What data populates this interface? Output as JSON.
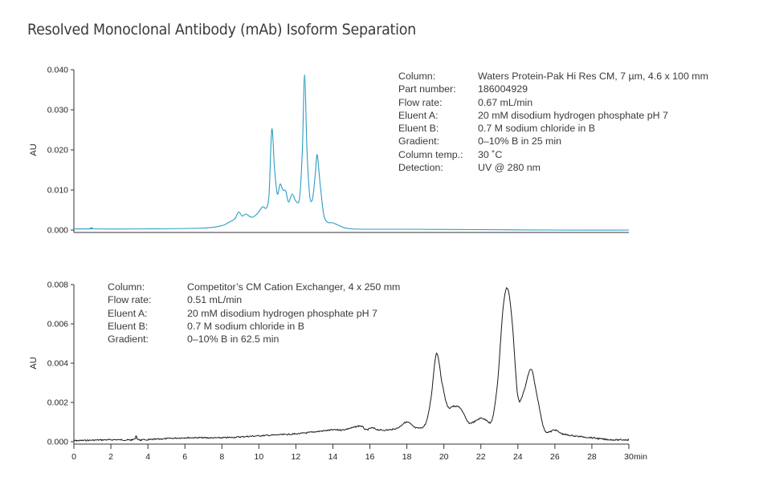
{
  "title": "Resolved Monoclonal Antibody (mAb) Isoform Separation",
  "chart_data": [
    {
      "type": "line",
      "title": "Waters Protein-Pak Hi Res CM",
      "xlabel": "min",
      "ylabel": "AU",
      "xlim": [
        0,
        30
      ],
      "ylim": [
        0,
        0.04
      ],
      "yticks": [
        "0.000",
        "0.010",
        "0.020",
        "0.030",
        "0.040"
      ],
      "grid": false,
      "line_color": "#2b9cc4",
      "series": [
        {
          "name": "Waters Protein-Pak Hi Res CM",
          "x": [
            0.0,
            0.9,
            1.0,
            1.1,
            4.0,
            7.0,
            8.0,
            8.4,
            8.7,
            8.9,
            9.1,
            9.3,
            9.6,
            9.9,
            10.2,
            10.4,
            10.55,
            10.7,
            10.85,
            11.0,
            11.15,
            11.3,
            11.45,
            11.6,
            11.8,
            12.0,
            12.2,
            12.35,
            12.47,
            12.6,
            12.75,
            12.9,
            13.05,
            13.15,
            13.3,
            13.5,
            13.7,
            14.0,
            14.3,
            14.6,
            15.0,
            16.0,
            18.0,
            22.0,
            26.0,
            30.0
          ],
          "y": [
            0.0003,
            0.0003,
            0.0006,
            0.0003,
            0.0003,
            0.0005,
            0.0011,
            0.002,
            0.0028,
            0.0045,
            0.0035,
            0.004,
            0.0032,
            0.004,
            0.0058,
            0.0055,
            0.009,
            0.0252,
            0.015,
            0.009,
            0.0115,
            0.01,
            0.0098,
            0.007,
            0.009,
            0.0072,
            0.008,
            0.02,
            0.0388,
            0.02,
            0.0085,
            0.0078,
            0.014,
            0.0188,
            0.012,
            0.004,
            0.002,
            0.0018,
            0.0012,
            0.0006,
            0.0003,
            0.0002,
            0.0002,
            0.0001,
            0.0,
            0.0
          ]
        }
      ],
      "annotation": [
        {
          "key": "Column:",
          "value": "Waters Protein-Pak Hi Res CM, 7 µm, 4.6 x 100 mm"
        },
        {
          "key": "Part number:",
          "value": "186004929"
        },
        {
          "key": "Flow rate:",
          "value": "0.67 mL/min"
        },
        {
          "key": "Eluent A:",
          "value": "20 mM disodium hydrogen phosphate pH 7"
        },
        {
          "key": "Eluent B:",
          "value": "0.7 M sodium chloride in B"
        },
        {
          "key": "Gradient:",
          "value": "0–10% B in 25 min"
        },
        {
          "key": "Column temp.:",
          "value": "30 ˚C"
        },
        {
          "key": "Detection:",
          "value": "UV @ 280 nm"
        }
      ]
    },
    {
      "type": "line",
      "title": "Competitor's CM Cation Exchanger",
      "xlabel": "min",
      "ylabel": "AU",
      "xlim": [
        0,
        30
      ],
      "ylim": [
        0,
        0.008
      ],
      "yticks": [
        "0.000",
        "0.002",
        "0.004",
        "0.006",
        "0.008"
      ],
      "xticks": [
        "0",
        "2",
        "4",
        "6",
        "8",
        "10",
        "12",
        "14",
        "16",
        "18",
        "20",
        "22",
        "24",
        "26",
        "28",
        "30"
      ],
      "grid": false,
      "line_color": "#1a1a1a",
      "series": [
        {
          "name": "Competitor's CM Cation Exchanger",
          "x": [
            0.0,
            2.0,
            3.2,
            3.35,
            3.5,
            4.0,
            6.0,
            8.0,
            10.0,
            12.0,
            13.0,
            14.0,
            14.5,
            15.0,
            15.5,
            15.8,
            16.1,
            16.5,
            17.0,
            17.5,
            18.0,
            18.5,
            19.0,
            19.3,
            19.6,
            19.9,
            20.2,
            20.5,
            20.9,
            21.3,
            21.6,
            22.0,
            22.3,
            22.6,
            22.9,
            23.2,
            23.45,
            23.7,
            24.0,
            24.3,
            24.7,
            25.0,
            25.4,
            25.7,
            26.0,
            26.4,
            27.0,
            28.0,
            29.0,
            30.0
          ],
          "y": [
            5e-05,
            0.0001,
            0.0001,
            0.0003,
            0.0001,
            0.0001,
            0.0002,
            0.0002,
            0.0003,
            0.0004,
            0.0005,
            0.0006,
            0.0006,
            0.0007,
            0.0008,
            0.0006,
            0.0007,
            0.0006,
            0.0006,
            0.0007,
            0.001,
            0.0007,
            0.0009,
            0.0022,
            0.0045,
            0.003,
            0.0018,
            0.0018,
            0.0017,
            0.001,
            0.001,
            0.0012,
            0.0011,
            0.0011,
            0.003,
            0.0068,
            0.0078,
            0.006,
            0.0023,
            0.0025,
            0.0037,
            0.0025,
            0.0007,
            0.0005,
            0.0006,
            0.0004,
            0.0003,
            0.0002,
            0.0001,
            0.0001
          ]
        }
      ],
      "annotation": [
        {
          "key": "Column:",
          "value": "Competitor’s CM Cation Exchanger, 4 x 250 mm"
        },
        {
          "key": "Flow rate:",
          "value": "0.51 mL/min"
        },
        {
          "key": "Eluent A:",
          "value": "20 mM disodium hydrogen phosphate pH 7"
        },
        {
          "key": "Eluent B:",
          "value": "0.7 M sodium chloride in B"
        },
        {
          "key": "Gradient:",
          "value": "0–10% B in 62.5 min"
        }
      ]
    }
  ]
}
